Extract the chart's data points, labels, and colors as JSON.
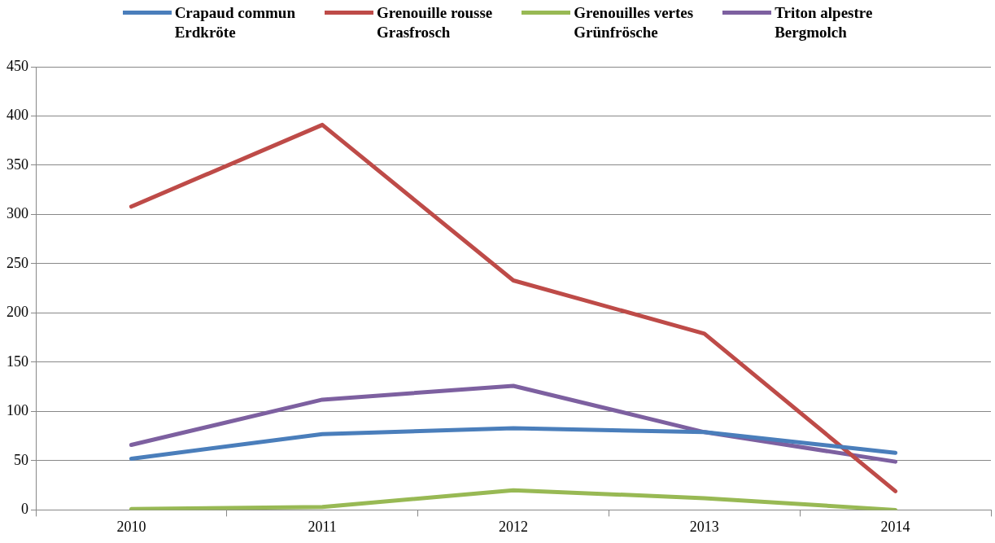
{
  "chart_data": {
    "type": "line",
    "categories": [
      "2010",
      "2011",
      "2012",
      "2013",
      "2014"
    ],
    "series": [
      {
        "name": "Crapaud commun\nErdkröte",
        "color": "#4a7ebb",
        "values": [
          52,
          77,
          83,
          79,
          58
        ]
      },
      {
        "name": "Grenouille rousse\nGrasfrosch",
        "color": "#be4b48",
        "values": [
          308,
          391,
          233,
          179,
          19
        ]
      },
      {
        "name": "Grenouilles vertes\nGrünfrösche",
        "color": "#98b954",
        "values": [
          1,
          3,
          20,
          12,
          0
        ]
      },
      {
        "name": "Triton alpestre\nBergmolch",
        "color": "#7d60a0",
        "values": [
          66,
          112,
          126,
          79,
          49
        ]
      }
    ],
    "ylim": [
      0,
      450
    ],
    "yticks": [
      0,
      50,
      100,
      150,
      200,
      250,
      300,
      350,
      400,
      450
    ],
    "grid": "y",
    "legend": "top",
    "marker": "none",
    "line_style": "solid"
  }
}
